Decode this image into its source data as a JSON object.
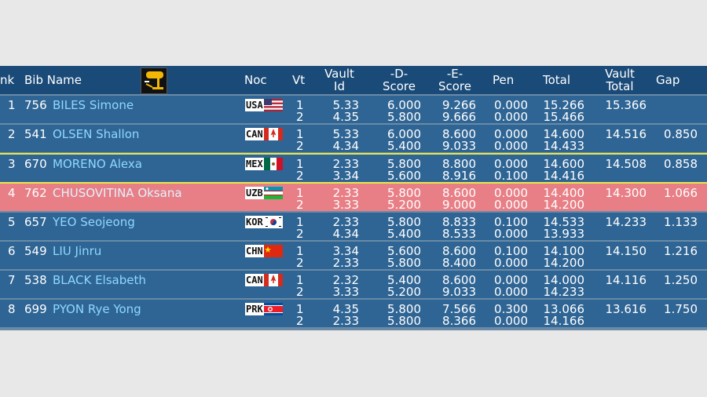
{
  "header": {
    "rank": "nk",
    "bib_name": "Bib Name",
    "noc": "Noc",
    "vt": "Vt",
    "vault_id_1": "Vault",
    "vault_id_2": "Id",
    "d_1": "-D-",
    "d_2": "Score",
    "e_1": "-E-",
    "e_2": "Score",
    "pen": "Pen",
    "total": "Total",
    "vt_total_1": "Vault",
    "vt_total_2": "Total",
    "gap": "Gap",
    "logo_icon": "vault-apparatus-icon"
  },
  "rows": [
    {
      "rank": "1",
      "bib": "756",
      "name": "BILES Simone",
      "noc": "USA",
      "flag": "usa",
      "v1": {
        "vt": "1",
        "id": "5.33",
        "d": "6.000",
        "e": "9.266",
        "pen": "0.000",
        "total": "15.266"
      },
      "v2": {
        "vt": "2",
        "id": "4.35",
        "d": "5.800",
        "e": "9.666",
        "pen": "0.000",
        "total": "15.466"
      },
      "vault_total": "15.366",
      "gap": ""
    },
    {
      "rank": "2",
      "bib": "541",
      "name": "OLSEN Shallon",
      "noc": "CAN",
      "flag": "can",
      "v1": {
        "vt": "1",
        "id": "5.33",
        "d": "6.000",
        "e": "8.600",
        "pen": "0.000",
        "total": "14.600"
      },
      "v2": {
        "vt": "2",
        "id": "4.34",
        "d": "5.400",
        "e": "9.033",
        "pen": "0.000",
        "total": "14.433"
      },
      "vault_total": "14.516",
      "gap": "0.850"
    },
    {
      "rank": "3",
      "bib": "670",
      "name": "MORENO Alexa",
      "noc": "MEX",
      "flag": "mex",
      "v1": {
        "vt": "1",
        "id": "2.33",
        "d": "5.800",
        "e": "8.800",
        "pen": "0.000",
        "total": "14.600"
      },
      "v2": {
        "vt": "2",
        "id": "3.34",
        "d": "5.600",
        "e": "8.916",
        "pen": "0.100",
        "total": "14.416"
      },
      "vault_total": "14.508",
      "gap": "0.858"
    },
    {
      "rank": "4",
      "bib": "762",
      "name": "CHUSOVITINA Oksana",
      "noc": "UZB",
      "flag": "uzb",
      "v1": {
        "vt": "1",
        "id": "2.33",
        "d": "5.800",
        "e": "8.600",
        "pen": "0.000",
        "total": "14.400"
      },
      "v2": {
        "vt": "2",
        "id": "3.33",
        "d": "5.200",
        "e": "9.000",
        "pen": "0.000",
        "total": "14.200"
      },
      "vault_total": "14.300",
      "gap": "1.066"
    },
    {
      "rank": "5",
      "bib": "657",
      "name": "YEO Seojeong",
      "noc": "KOR",
      "flag": "kor",
      "v1": {
        "vt": "1",
        "id": "2.33",
        "d": "5.800",
        "e": "8.833",
        "pen": "0.100",
        "total": "14.533"
      },
      "v2": {
        "vt": "2",
        "id": "4.34",
        "d": "5.400",
        "e": "8.533",
        "pen": "0.000",
        "total": "13.933"
      },
      "vault_total": "14.233",
      "gap": "1.133"
    },
    {
      "rank": "6",
      "bib": "549",
      "name": "LIU Jinru",
      "noc": "CHN",
      "flag": "chn",
      "v1": {
        "vt": "1",
        "id": "3.34",
        "d": "5.600",
        "e": "8.600",
        "pen": "0.100",
        "total": "14.100"
      },
      "v2": {
        "vt": "2",
        "id": "2.33",
        "d": "5.800",
        "e": "8.400",
        "pen": "0.000",
        "total": "14.200"
      },
      "vault_total": "14.150",
      "gap": "1.216"
    },
    {
      "rank": "7",
      "bib": "538",
      "name": "BLACK Elsabeth",
      "noc": "CAN",
      "flag": "can",
      "v1": {
        "vt": "1",
        "id": "2.32",
        "d": "5.400",
        "e": "8.600",
        "pen": "0.000",
        "total": "14.000"
      },
      "v2": {
        "vt": "2",
        "id": "3.33",
        "d": "5.200",
        "e": "9.033",
        "pen": "0.000",
        "total": "14.233"
      },
      "vault_total": "14.116",
      "gap": "1.250"
    },
    {
      "rank": "8",
      "bib": "699",
      "name": "PYON Rye Yong",
      "noc": "PRK",
      "flag": "prk",
      "v1": {
        "vt": "1",
        "id": "4.35",
        "d": "5.800",
        "e": "7.566",
        "pen": "0.300",
        "total": "13.066"
      },
      "v2": {
        "vt": "2",
        "id": "2.33",
        "d": "5.800",
        "e": "8.366",
        "pen": "0.000",
        "total": "14.166"
      },
      "vault_total": "13.616",
      "gap": "1.750"
    }
  ],
  "highlight_row_index": 3,
  "colors": {
    "header_bg": "#1a4a78",
    "row_bg": "#2f6594",
    "highlight_bg": "#e87f86",
    "separator": "#e6e84a",
    "name_text": "#8fd8ff"
  }
}
